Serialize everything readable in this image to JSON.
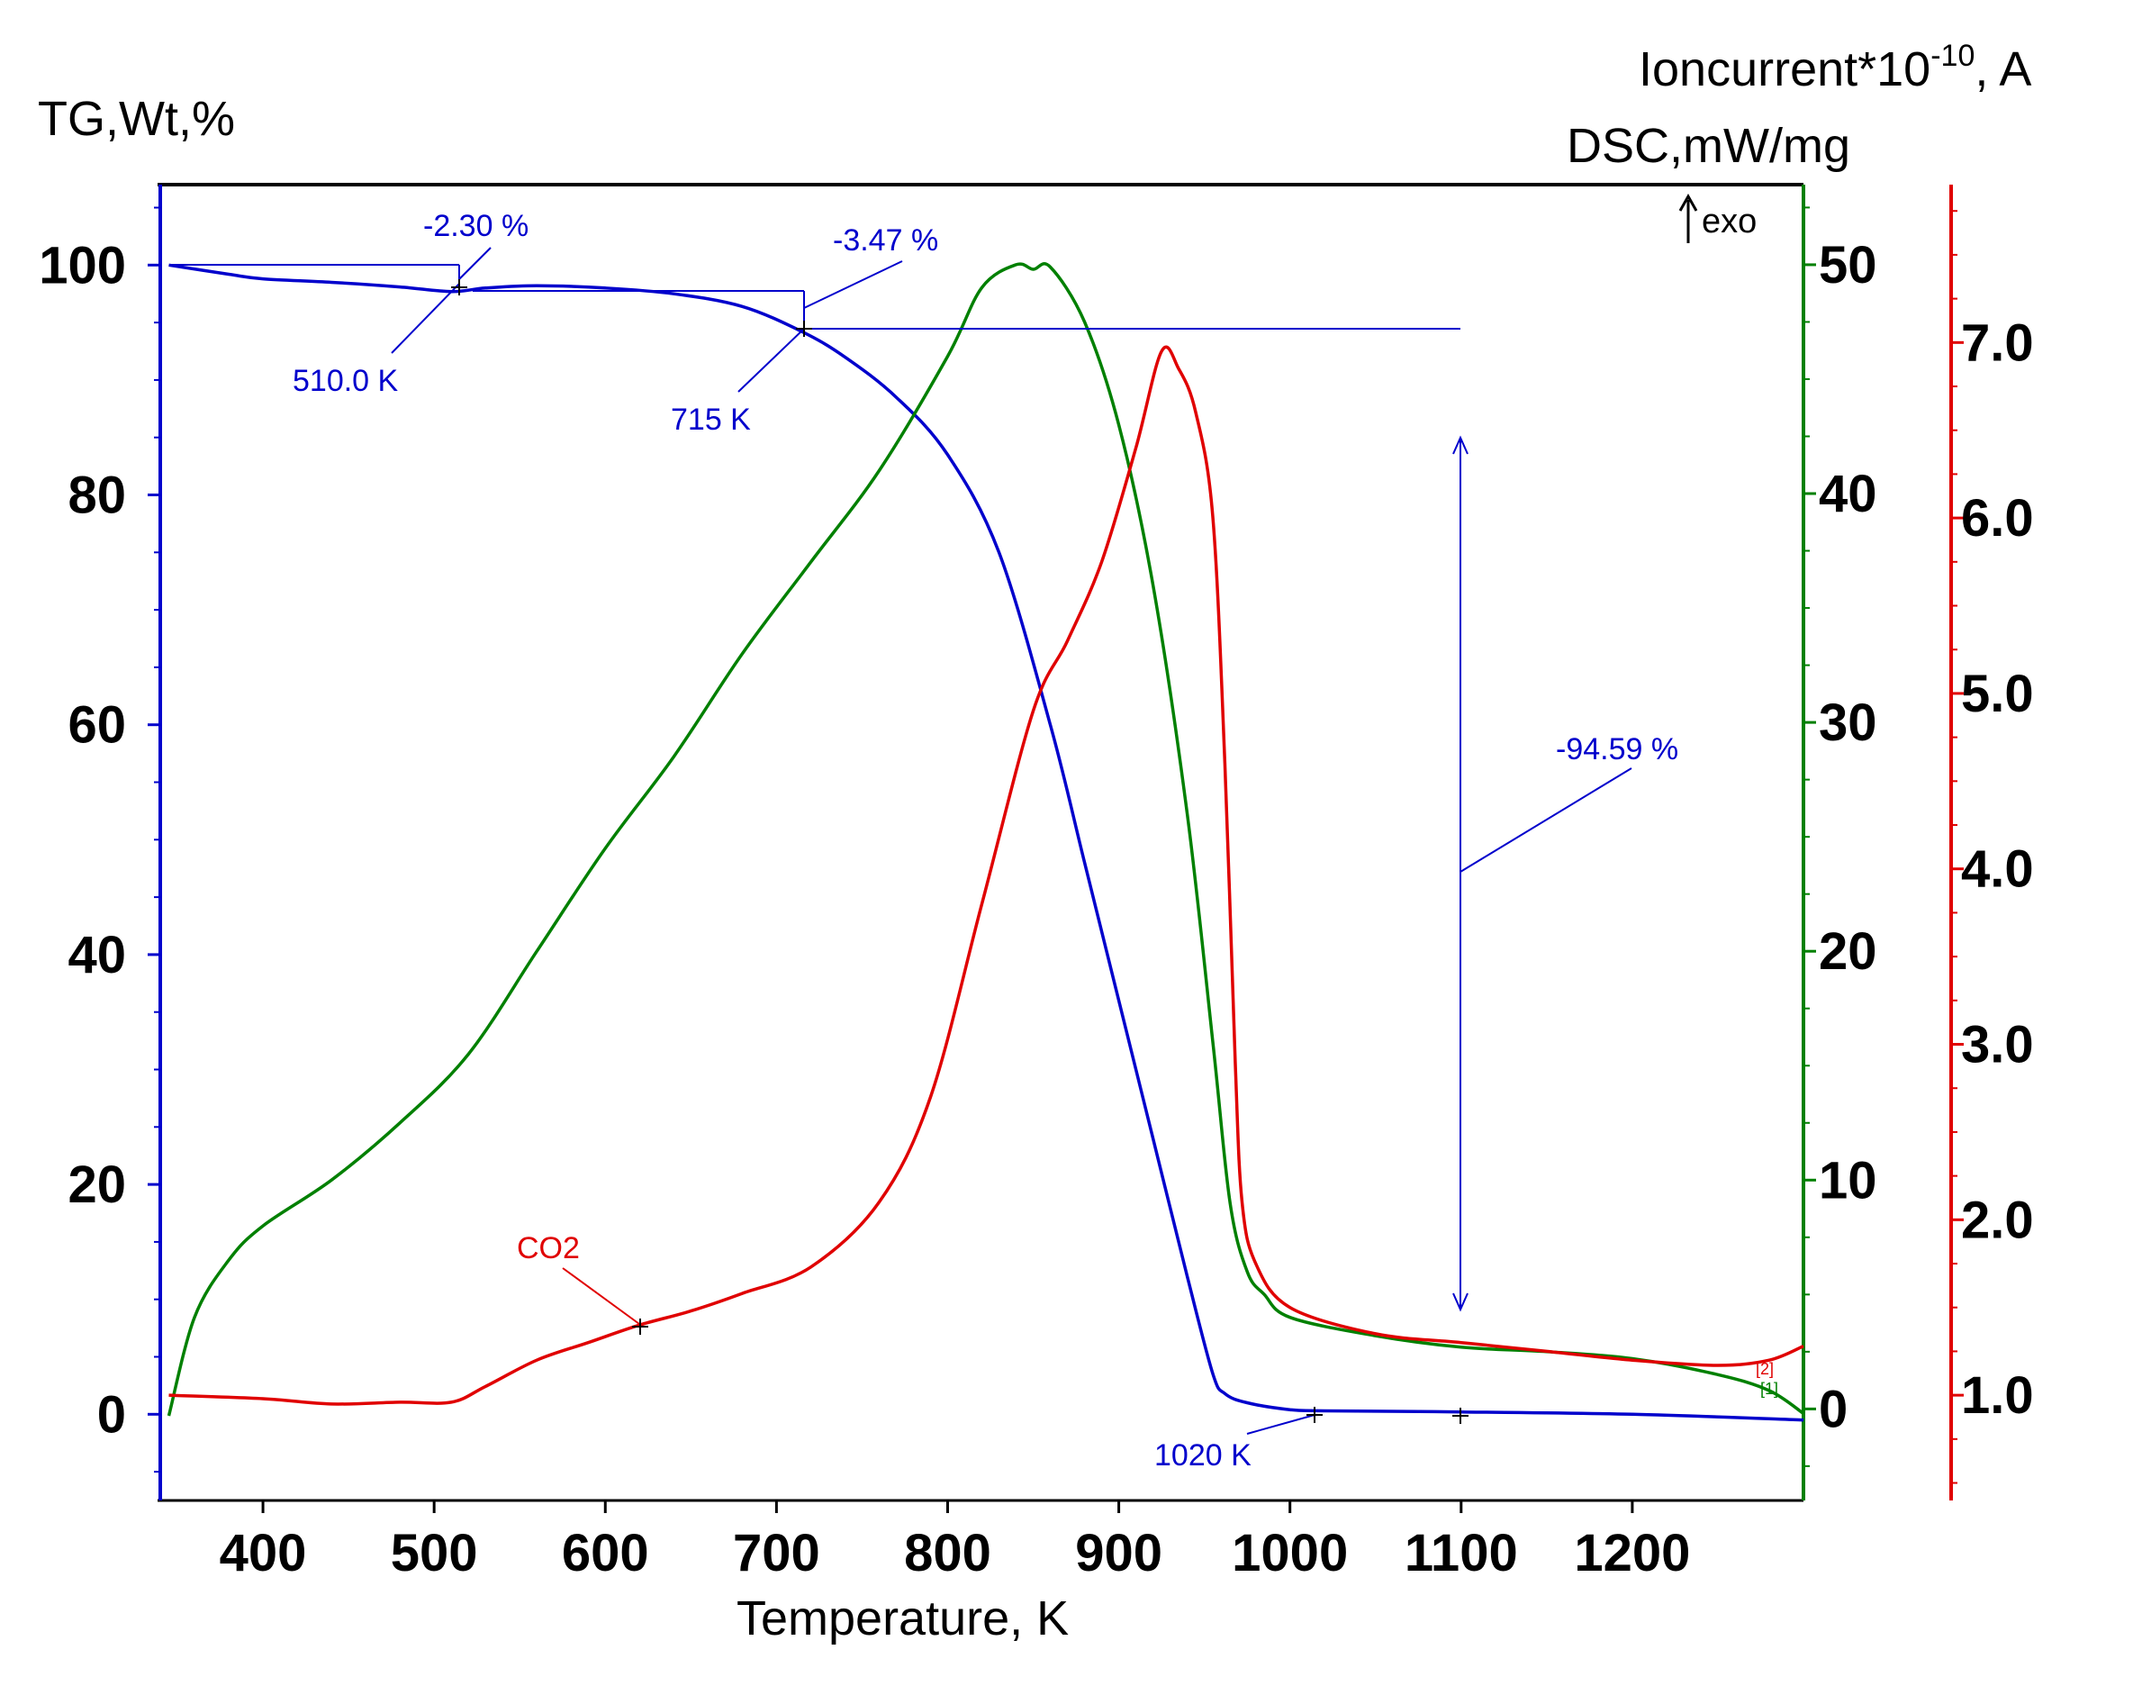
{
  "chart_data": {
    "type": "line",
    "title": "",
    "xlabel": "Temperature, K",
    "xlim": [
      340,
      1300
    ],
    "xticks": [
      400,
      500,
      600,
      700,
      800,
      900,
      1000,
      1100,
      1200
    ],
    "axes": {
      "tg": {
        "label": "TG,Wt,%",
        "ylim": [
          -7.5,
          107
        ],
        "ticks": [
          0,
          20,
          40,
          60,
          80,
          100
        ],
        "tick_labels": [
          "0",
          "20",
          "40",
          "60",
          "80",
          "100"
        ],
        "color": "#0000cc"
      },
      "dsc": {
        "label": "DSC,mW/mg",
        "ylim": [
          -4,
          53.5
        ],
        "ticks": [
          0,
          10,
          20,
          30,
          40,
          50
        ],
        "tick_labels": [
          "0",
          "10",
          "20",
          "30",
          "40",
          "50"
        ],
        "color": "#008000"
      },
      "ion": {
        "label_main": "Ioncurrent*10",
        "label_exp": "-10",
        "label_tail": ", A",
        "ylim": [
          0.4,
          7.9
        ],
        "ticks": [
          1.0,
          2.0,
          3.0,
          4.0,
          5.0,
          6.0,
          7.0
        ],
        "tick_labels": [
          "1.0",
          "2.0",
          "3.0",
          "4.0",
          "5.0",
          "6.0",
          "7.0"
        ],
        "color": "#e00000"
      }
    },
    "exo_label": "exo",
    "series": [
      {
        "name": "TG",
        "axis": "tg",
        "color": "#0000cc",
        "x": [
          345,
          380,
          400,
          440,
          480,
          510,
          530,
          560,
          600,
          640,
          680,
          715,
          740,
          770,
          800,
          830,
          860,
          880,
          900,
          920,
          940,
          955,
          962,
          975,
          1000,
          1020,
          1100,
          1200,
          1300
        ],
        "y": [
          100,
          99.2,
          98.8,
          98.5,
          98.1,
          97.7,
          98.0,
          98.2,
          98.0,
          97.5,
          96.4,
          94.2,
          92.0,
          88.5,
          83.5,
          75.0,
          60.0,
          48.0,
          36.0,
          24.0,
          12.0,
          3.5,
          1.8,
          1.0,
          0.4,
          0.3,
          0.2,
          0.0,
          -0.5
        ]
      },
      {
        "name": "DSC",
        "axis": "dsc",
        "color": "#008000",
        "x": [
          345,
          360,
          380,
          400,
          440,
          480,
          520,
          560,
          600,
          640,
          680,
          720,
          760,
          800,
          820,
          840,
          850,
          860,
          880,
          900,
          920,
          940,
          955,
          965,
          975,
          985,
          1000,
          1050,
          1100,
          1150,
          1200,
          1250,
          1280,
          1300
        ],
        "y": [
          -0.3,
          4.0,
          6.5,
          8.0,
          10.0,
          12.5,
          15.5,
          20.0,
          24.5,
          28.5,
          33.0,
          37.0,
          41.0,
          46.0,
          49.0,
          50.0,
          49.8,
          49.9,
          47.5,
          43.0,
          36.0,
          26.0,
          16.0,
          9.0,
          6.0,
          5.0,
          4.0,
          3.2,
          2.7,
          2.5,
          2.2,
          1.5,
          0.8,
          -0.2
        ]
      },
      {
        "name": "CO2",
        "axis": "ion",
        "color": "#e00000",
        "x": [
          345,
          400,
          440,
          480,
          510,
          530,
          560,
          590,
          620,
          650,
          680,
          720,
          760,
          790,
          820,
          850,
          870,
          890,
          910,
          925,
          935,
          945,
          955,
          962,
          968,
          972,
          980,
          1000,
          1050,
          1100,
          1150,
          1200,
          1250,
          1280,
          1300
        ],
        "y": [
          1.0,
          0.98,
          0.95,
          0.96,
          0.96,
          1.05,
          1.2,
          1.3,
          1.4,
          1.48,
          1.58,
          1.73,
          2.1,
          2.7,
          3.8,
          4.9,
          5.3,
          5.75,
          6.4,
          6.95,
          6.85,
          6.6,
          6.0,
          4.6,
          2.9,
          2.1,
          1.75,
          1.5,
          1.35,
          1.3,
          1.25,
          1.2,
          1.17,
          1.2,
          1.28
        ]
      }
    ],
    "annotations": {
      "step1_pct": "-2.30 %",
      "step1_temp": "510.0 K",
      "step2_pct": "-3.47 %",
      "step2_temp": "715 K",
      "step3_pct": "-94.59 %",
      "step3_temp": "1020 K",
      "co2_label": "CO2",
      "marker1": "[1]",
      "marker2": "[2]"
    }
  }
}
